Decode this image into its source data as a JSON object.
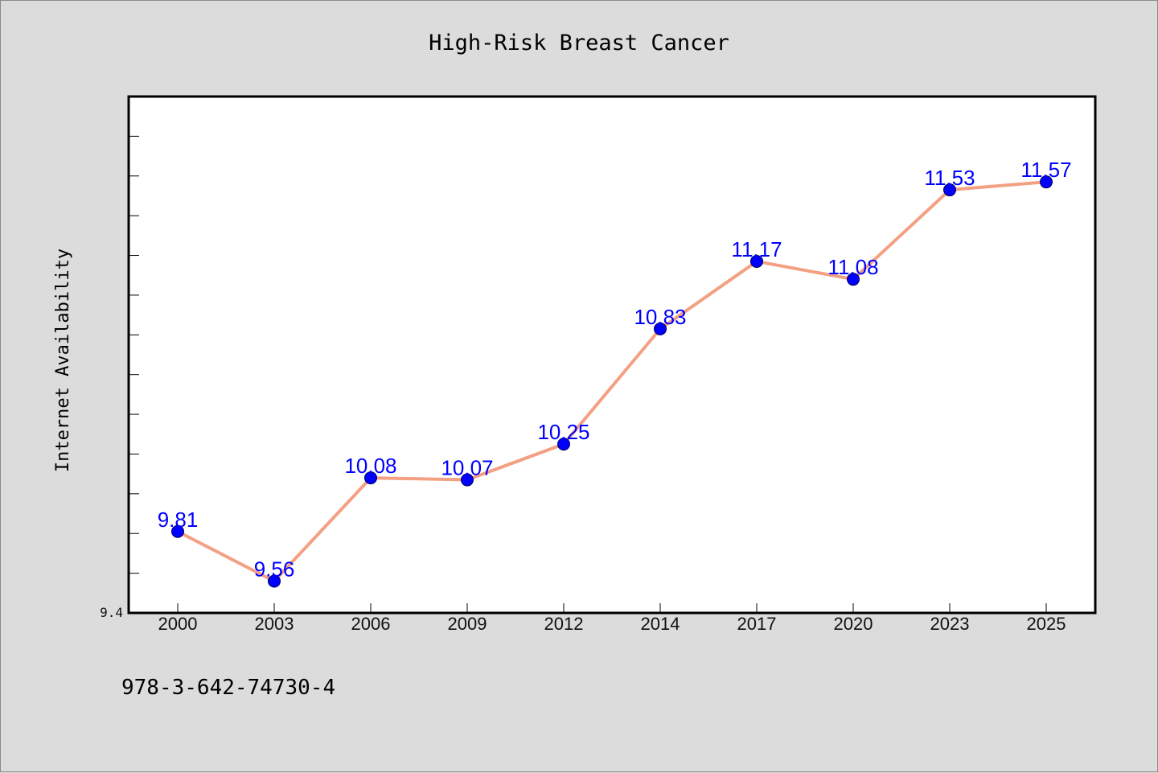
{
  "footer_text": "978-3-642-74730-4",
  "colors": {
    "background": "#dcdcdc",
    "plot_background": "#ffffff",
    "line": "#f4a082",
    "marker": "#0000ff",
    "label": "#0000ff"
  },
  "chart_data": {
    "type": "line",
    "title": "High-Risk Breast Cancer",
    "xlabel": "",
    "ylabel": "Internet Availability",
    "categories": [
      "2000",
      "2003",
      "2006",
      "2009",
      "2012",
      "2014",
      "2017",
      "2020",
      "2023",
      "2025"
    ],
    "series": [
      {
        "values": [
          9.81,
          9.56,
          10.08,
          10.07,
          10.25,
          10.83,
          11.17,
          11.08,
          11.53,
          11.57
        ]
      }
    ],
    "ylim": [
      9.4,
      12.0
    ],
    "y_tick_labels": [
      "9.4"
    ],
    "grid": false,
    "legend": "none"
  }
}
